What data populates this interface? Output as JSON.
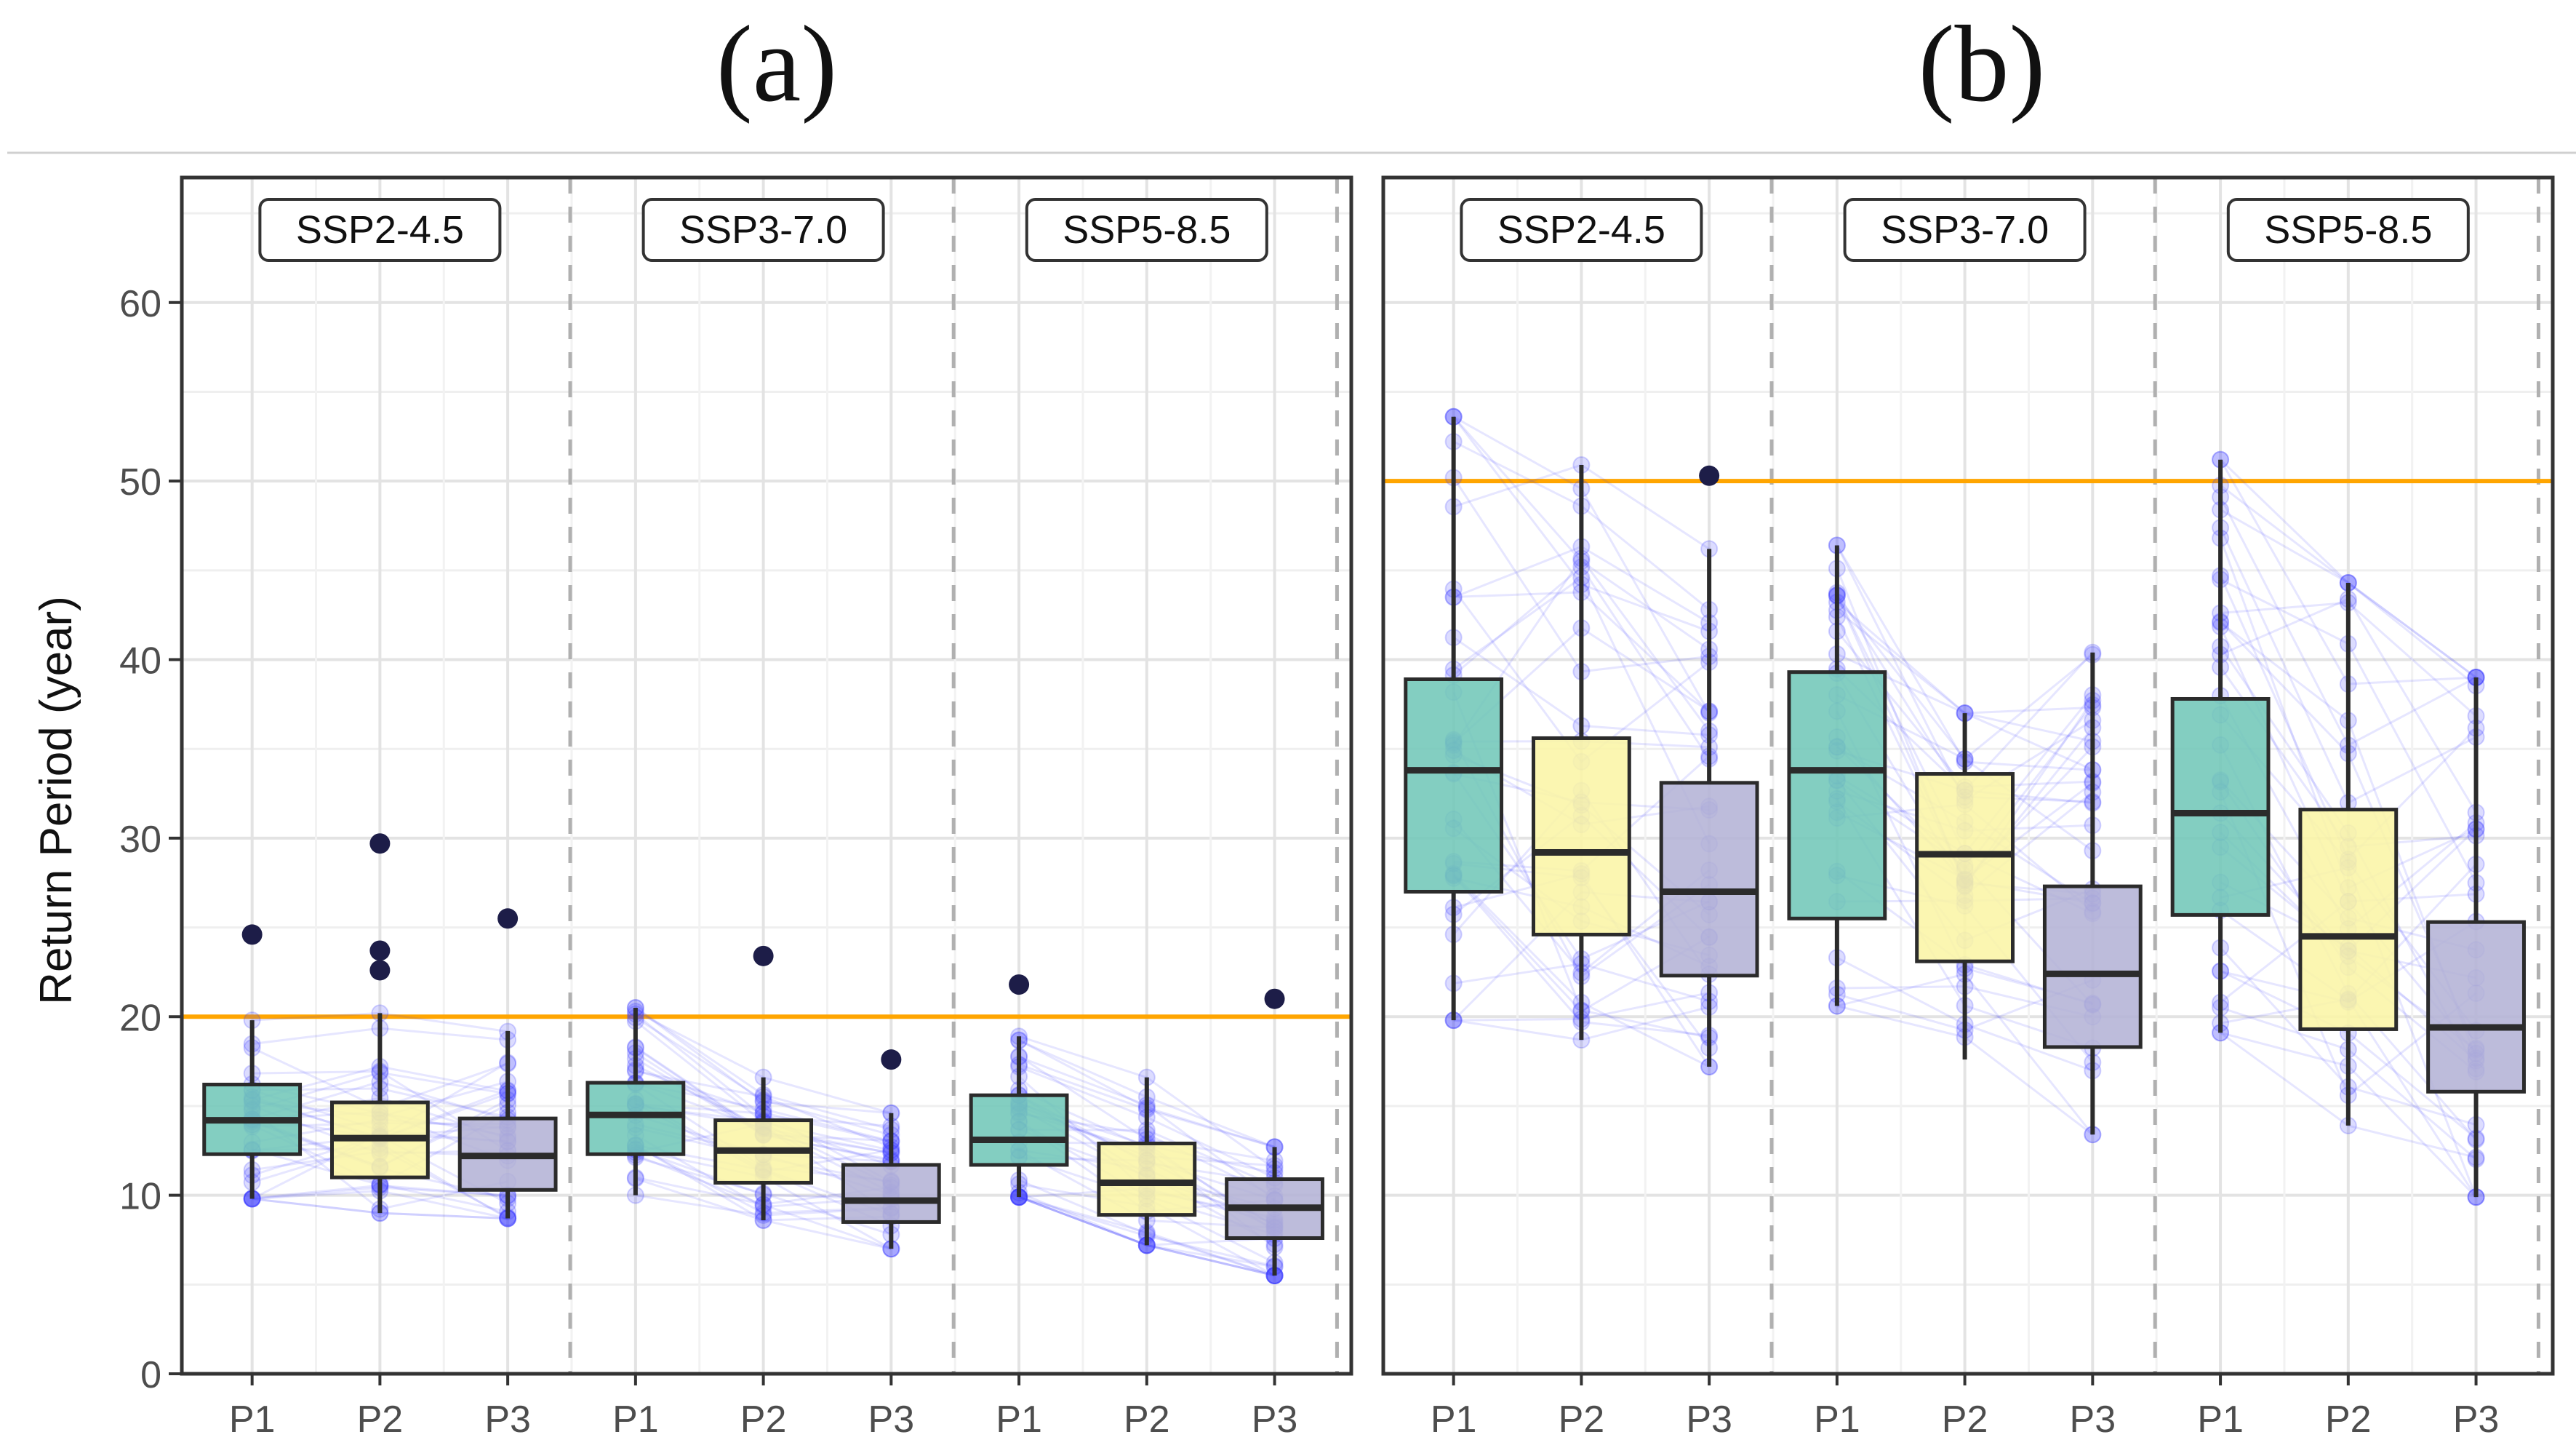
{
  "panels": [
    {
      "label": "(a)"
    },
    {
      "label": "(b)"
    }
  ],
  "ylabel": "Return Period (year)",
  "y_ticks": [
    "0",
    "10",
    "20",
    "30",
    "40",
    "50",
    "60"
  ],
  "colors": {
    "P1": "#72c7b8",
    "P2": "#fbf5a6",
    "P3": "#b4b3d6",
    "threshold": "#ffa500",
    "points": "#3b3bff",
    "outlier": "#1d1d48",
    "box_edge": "#2b2b2b"
  },
  "chart_data": [
    {
      "type": "box",
      "title": "(a)",
      "ylabel": "Return Period (year)",
      "ylim": [
        0,
        67
      ],
      "reference_line": 20,
      "grid": true,
      "facets": [
        {
          "name": "SSP2-4.5",
          "categories": [
            "P1",
            "P2",
            "P3"
          ],
          "boxes": [
            {
              "q1": 12.3,
              "median": 14.2,
              "q3": 16.2,
              "whisker_low": 9.8,
              "whisker_high": 19.8,
              "outliers": [
                24.6
              ]
            },
            {
              "q1": 11.0,
              "median": 13.2,
              "q3": 15.2,
              "whisker_low": 9.0,
              "whisker_high": 20.2,
              "outliers": [
                29.7,
                23.7,
                22.6
              ]
            },
            {
              "q1": 10.3,
              "median": 12.2,
              "q3": 14.3,
              "whisker_low": 8.7,
              "whisker_high": 19.2,
              "outliers": [
                25.5
              ]
            }
          ]
        },
        {
          "name": "SSP3-7.0",
          "categories": [
            "P1",
            "P2",
            "P3"
          ],
          "boxes": [
            {
              "q1": 12.3,
              "median": 14.5,
              "q3": 16.3,
              "whisker_low": 10.0,
              "whisker_high": 20.5,
              "outliers": []
            },
            {
              "q1": 10.7,
              "median": 12.5,
              "q3": 14.2,
              "whisker_low": 8.6,
              "whisker_high": 16.6,
              "outliers": [
                23.4
              ]
            },
            {
              "q1": 8.5,
              "median": 9.7,
              "q3": 11.7,
              "whisker_low": 7.0,
              "whisker_high": 14.6,
              "outliers": [
                17.6
              ]
            }
          ]
        },
        {
          "name": "SSP5-8.5",
          "categories": [
            "P1",
            "P2",
            "P3"
          ],
          "boxes": [
            {
              "q1": 11.7,
              "median": 13.1,
              "q3": 15.6,
              "whisker_low": 9.9,
              "whisker_high": 18.9,
              "outliers": [
                21.8
              ]
            },
            {
              "q1": 8.9,
              "median": 10.7,
              "q3": 12.9,
              "whisker_low": 7.2,
              "whisker_high": 16.6,
              "outliers": []
            },
            {
              "q1": 7.6,
              "median": 9.3,
              "q3": 10.9,
              "whisker_low": 5.5,
              "whisker_high": 12.7,
              "outliers": [
                21.0
              ]
            }
          ]
        }
      ]
    },
    {
      "type": "box",
      "title": "(b)",
      "ylabel": "Return Period (year)",
      "ylim": [
        0,
        67
      ],
      "reference_line": 50,
      "grid": true,
      "facets": [
        {
          "name": "SSP2-4.5",
          "categories": [
            "P1",
            "P2",
            "P3"
          ],
          "boxes": [
            {
              "q1": 27.0,
              "median": 33.8,
              "q3": 38.9,
              "whisker_low": 19.8,
              "whisker_high": 53.6,
              "outliers": []
            },
            {
              "q1": 24.6,
              "median": 29.2,
              "q3": 35.6,
              "whisker_low": 18.7,
              "whisker_high": 50.9,
              "outliers": []
            },
            {
              "q1": 22.3,
              "median": 27.0,
              "q3": 33.1,
              "whisker_low": 17.2,
              "whisker_high": 46.2,
              "outliers": [
                50.3
              ]
            }
          ]
        },
        {
          "name": "SSP3-7.0",
          "categories": [
            "P1",
            "P2",
            "P3"
          ],
          "boxes": [
            {
              "q1": 25.5,
              "median": 33.8,
              "q3": 39.3,
              "whisker_low": 20.6,
              "whisker_high": 46.4,
              "outliers": []
            },
            {
              "q1": 23.1,
              "median": 29.1,
              "q3": 33.6,
              "whisker_low": 17.6,
              "whisker_high": 37.0,
              "outliers": []
            },
            {
              "q1": 18.3,
              "median": 22.4,
              "q3": 27.3,
              "whisker_low": 13.4,
              "whisker_high": 40.4,
              "outliers": []
            }
          ]
        },
        {
          "name": "SSP5-8.5",
          "categories": [
            "P1",
            "P2",
            "P3"
          ],
          "boxes": [
            {
              "q1": 25.7,
              "median": 31.4,
              "q3": 37.8,
              "whisker_low": 19.1,
              "whisker_high": 51.2,
              "outliers": []
            },
            {
              "q1": 19.3,
              "median": 24.5,
              "q3": 31.6,
              "whisker_low": 13.9,
              "whisker_high": 44.3,
              "outliers": []
            },
            {
              "q1": 15.8,
              "median": 19.4,
              "q3": 25.3,
              "whisker_low": 9.9,
              "whisker_high": 39.0,
              "outliers": []
            }
          ]
        }
      ]
    }
  ]
}
